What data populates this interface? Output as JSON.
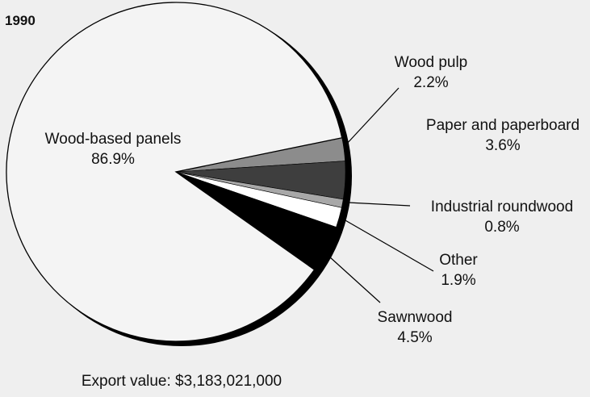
{
  "chart_data": {
    "type": "pie",
    "title": "1990",
    "caption": "Export value: $3,183,021,000",
    "slices": [
      {
        "label": "Wood-based panels",
        "value": 86.9,
        "display": "86.9%",
        "color": "#f4f4f4"
      },
      {
        "label": "Wood pulp",
        "value": 2.2,
        "display": "2.2%",
        "color": "#8c8c8c"
      },
      {
        "label": "Paper and paperboard",
        "value": 3.6,
        "display": "3.6%",
        "color": "#3e3e3e"
      },
      {
        "label": "Industrial roundwood",
        "value": 0.8,
        "display": "0.8%",
        "color": "#a8a8a8"
      },
      {
        "label": "Other",
        "value": 1.9,
        "display": "1.9%",
        "color": "#ffffff"
      },
      {
        "label": "Sawnwood",
        "value": 4.5,
        "display": "4.5%",
        "color": "#000000"
      }
    ],
    "colors": {
      "background": "#efefef",
      "outline": "#000000"
    },
    "legend": "none"
  }
}
